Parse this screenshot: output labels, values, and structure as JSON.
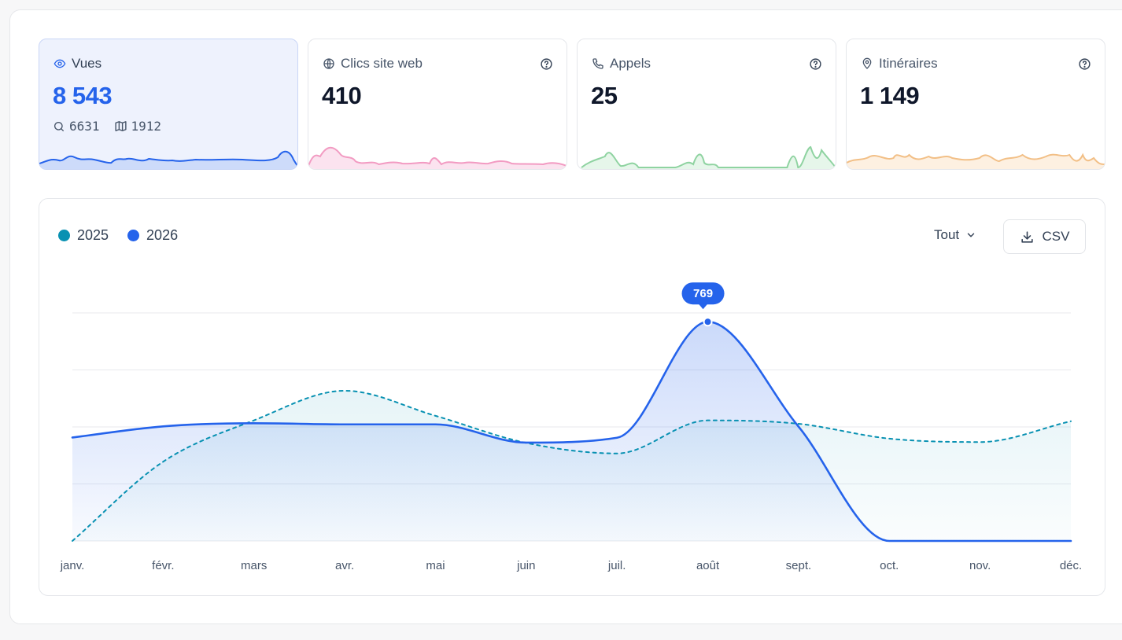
{
  "cards": [
    {
      "title": "Vues",
      "value": "8 543",
      "sub": [
        {
          "icon": "search-icon",
          "value": "6631"
        },
        {
          "icon": "map-icon",
          "value": "1912"
        }
      ],
      "icon": "eye-icon",
      "color": "#2563eb",
      "active": true
    },
    {
      "title": "Clics site web",
      "value": "410",
      "icon": "globe-icon",
      "color": "#f472b6"
    },
    {
      "title": "Appels",
      "value": "25",
      "icon": "phone-icon",
      "color": "#86d19a"
    },
    {
      "title": "Itinéraires",
      "value": "1 149",
      "icon": "map-pin-icon",
      "color": "#f2b879"
    }
  ],
  "legend": [
    {
      "label": "2025",
      "color": "#0891b2"
    },
    {
      "label": "2026",
      "color": "#2563eb"
    }
  ],
  "filter": {
    "label": "Tout"
  },
  "csv": {
    "label": "CSV"
  },
  "chart_data": {
    "type": "line",
    "categories": [
      "janv.",
      "févr.",
      "mars",
      "avr.",
      "mai",
      "juin",
      "juil.",
      "août",
      "sept.",
      "oct.",
      "nov.",
      "déc."
    ],
    "series": [
      {
        "name": "2025",
        "style": "dashed",
        "color": "#0891b2",
        "values": [
          0,
          278,
          423,
          527,
          439,
          344,
          307,
          423,
          411,
          359,
          347,
          420
        ]
      },
      {
        "name": "2026",
        "style": "solid",
        "color": "#2563eb",
        "values": [
          363,
          402,
          413,
          409,
          409,
          345,
          362,
          769,
          401,
          0,
          0,
          0
        ]
      }
    ],
    "ylim": [
      0,
      800
    ],
    "grid": true,
    "tooltip": {
      "category": "août",
      "series": "2026",
      "value": "769"
    }
  }
}
